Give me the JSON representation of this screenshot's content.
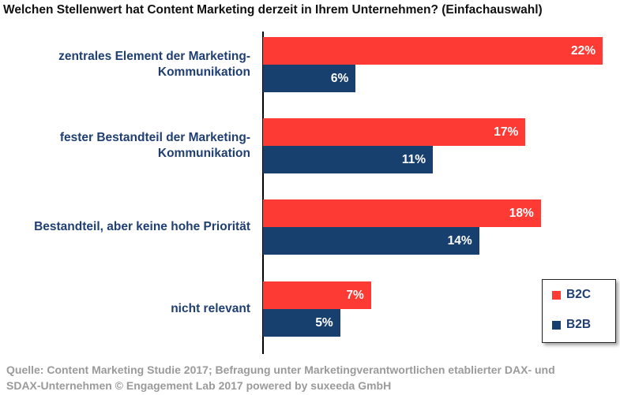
{
  "chart_data": {
    "type": "bar",
    "orientation": "horizontal",
    "title": "Welchen Stellenwert hat Content Marketing derzeit in Ihrem Unternehmen? (Einfachauswahl)",
    "categories": [
      [
        "zentrales Element der Marketing-",
        "Kommunikation"
      ],
      [
        "fester Bestandteil der Marketing-",
        "Kommunikation"
      ],
      [
        "Bestandteil, aber keine hohe Priorität"
      ],
      [
        "nicht relevant"
      ]
    ],
    "series": [
      {
        "name": "B2C",
        "color": "#fd3a34",
        "values": [
          22,
          17,
          18,
          7
        ]
      },
      {
        "name": "B2B",
        "color": "#17406e",
        "values": [
          6,
          11,
          14,
          5
        ]
      }
    ],
    "value_suffix": "%",
    "xlim": [
      0,
      22
    ],
    "legend": "bottom-right"
  },
  "source_lines": [
    "Quelle: Content Marketing Studie 2017; Befragung unter Marketingverantwortlichen etablierter DAX- und",
    "SDAX-Unternehmen  © Engagement Lab 2017 powered by suxeeda GmbH"
  ]
}
